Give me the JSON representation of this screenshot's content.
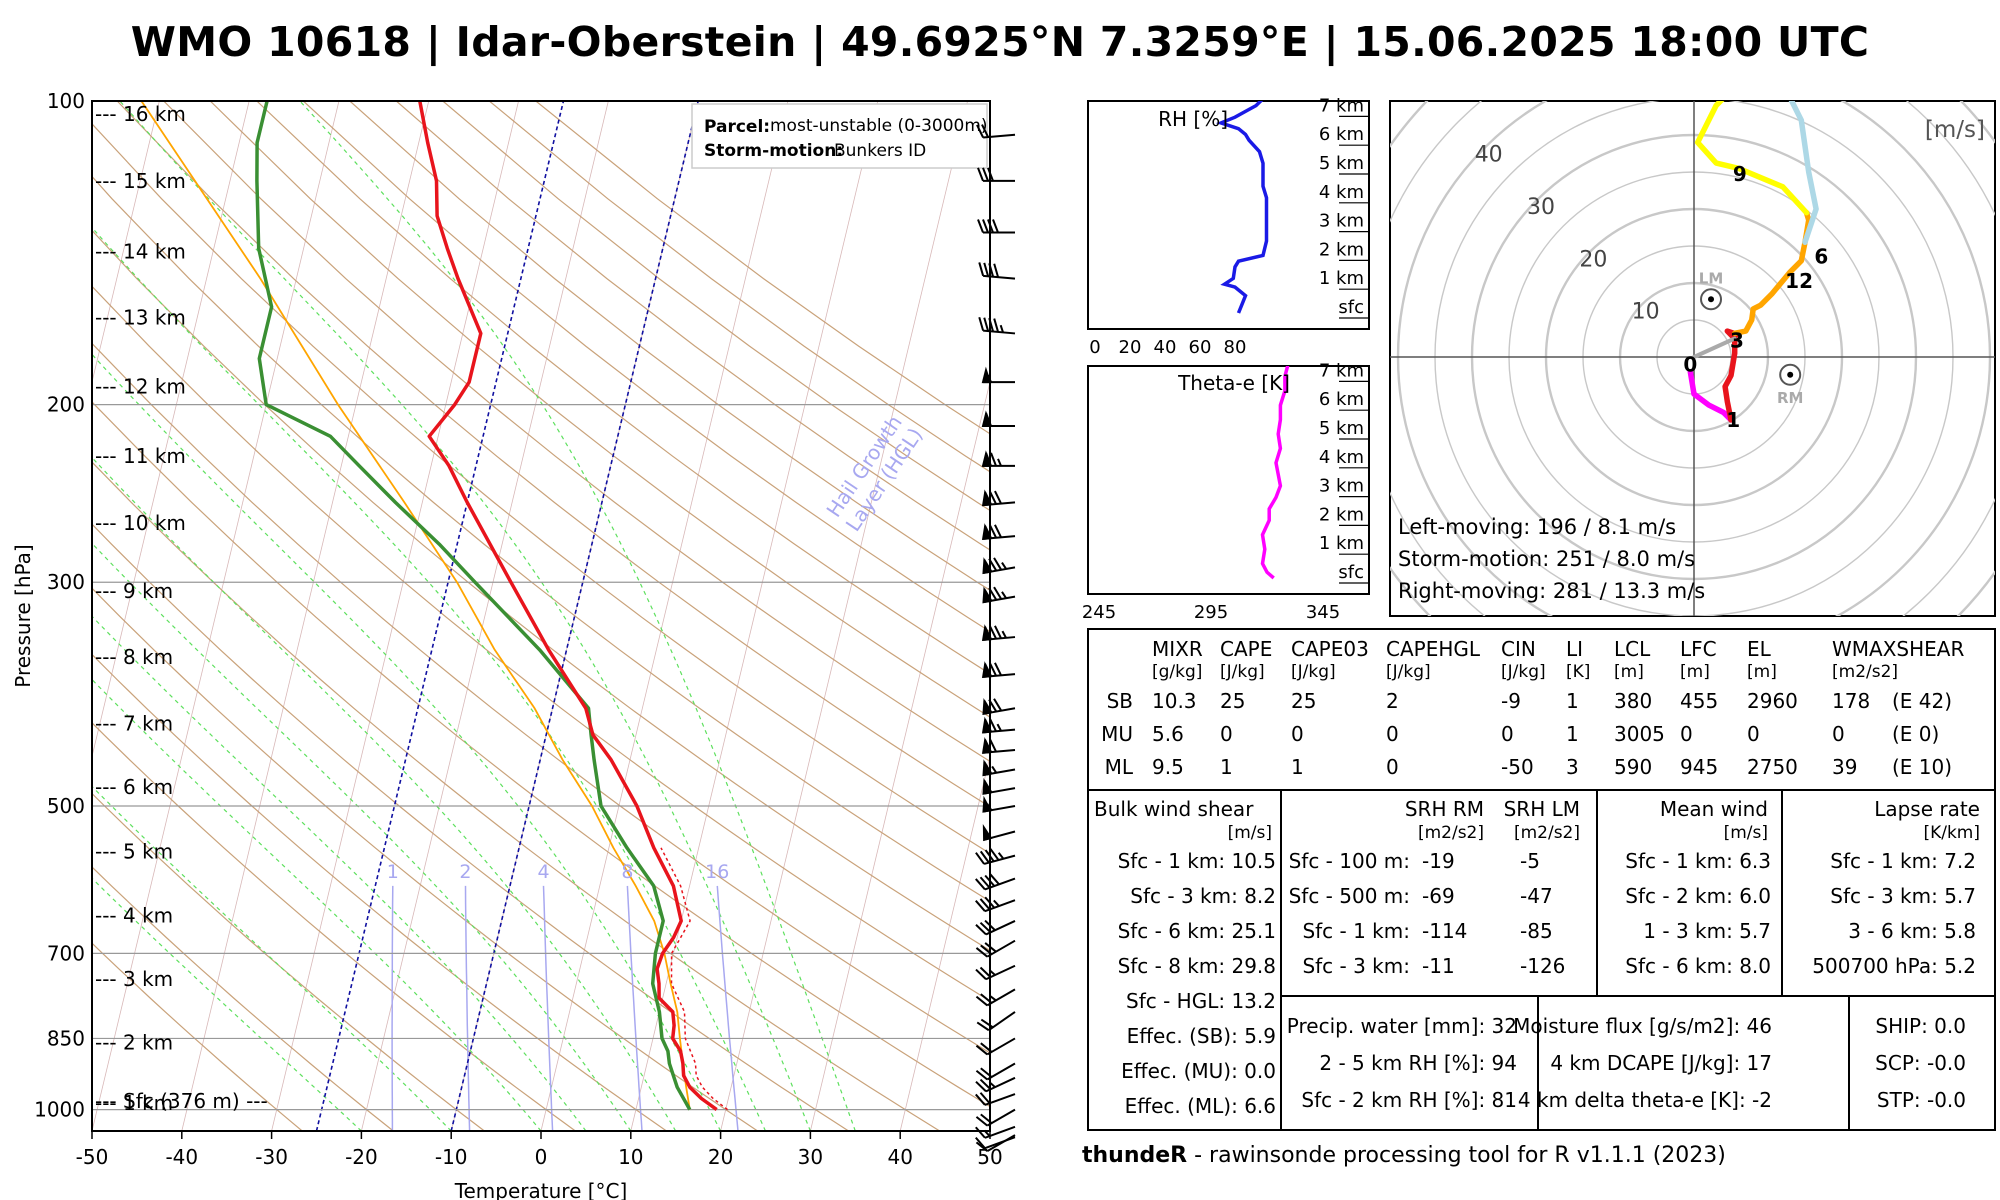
{
  "title": "WMO 10618 | Idar-Oberstein | 49.6925°N 7.3259°E | 15.06.2025 18:00 UTC",
  "footer": {
    "brand": "thundeR",
    "text": " - rawinsonde processing tool for R v1.1.1 (2023)"
  },
  "skewt": {
    "ylabel": "Pressure [hPa]",
    "xlabel": "Temperature [°C]",
    "pressure_ticks": [
      "100",
      "200",
      "300",
      "500",
      "700",
      "850",
      "1000"
    ],
    "temp_ticks": [
      "-50",
      "-40",
      "-30",
      "-20",
      "-10",
      "0",
      "10",
      "20",
      "30",
      "40",
      "50"
    ],
    "height_labels": [
      "--- 16 km",
      "--- 15 km",
      "--- 14 km",
      "--- 13 km",
      "--- 12 km",
      "--- 11 km",
      "--- 10 km",
      "--- 9 km",
      "--- 8 km",
      "--- 7 km",
      "--- 6 km",
      "--- 5 km",
      "--- 4 km",
      "--- 3 km",
      "--- 2 km",
      "--- 1 km",
      "--- Sfc (376 m) ---"
    ],
    "legend": {
      "parcel_key": "Parcel:",
      "parcel_val": "most-unstable (0-3000m)",
      "storm_key": "Storm-motion:",
      "storm_val": "Bunkers ID"
    },
    "mixing_labels": [
      "1",
      "2",
      "4",
      "8",
      "16"
    ],
    "hgl_label_1": "Hail Growth",
    "hgl_label_2": "Layer (HGL)",
    "colors": {
      "temperature": "#e8141c",
      "dewpoint": "#3a8f33",
      "parcel": "#ffa500",
      "hgl": "#1010a0",
      "mixing": "#a8a8f0"
    }
  },
  "chart_data": [
    {
      "type": "line",
      "name": "skew-t",
      "ylim_hpa": [
        1000,
        100
      ],
      "xlim_c": [
        -50,
        50
      ],
      "series": [
        {
          "name": "temperature",
          "points": [
            [
              1000,
              19
            ],
            [
              975,
              17
            ],
            [
              950,
              15.4
            ],
            [
              925,
              14.4
            ],
            [
              900,
              14
            ],
            [
              875,
              13.4
            ],
            [
              850,
              12.2
            ],
            [
              825,
              12
            ],
            [
              800,
              11.5
            ],
            [
              775,
              9.6
            ],
            [
              750,
              9.2
            ],
            [
              725,
              8.6
            ],
            [
              700,
              8.8
            ],
            [
              675,
              9.6
            ],
            [
              650,
              10
            ],
            [
              600,
              8.2
            ],
            [
              550,
              5
            ],
            [
              500,
              2
            ],
            [
              450,
              -2.1
            ],
            [
              425,
              -4.8
            ],
            [
              400,
              -6.3
            ],
            [
              350,
              -12
            ],
            [
              300,
              -18
            ],
            [
              250,
              -25
            ],
            [
              230,
              -28
            ],
            [
              215,
              -31
            ],
            [
              200,
              -29
            ],
            [
              190,
              -28
            ],
            [
              170,
              -28
            ],
            [
              150,
              -32
            ],
            [
              140,
              -34
            ],
            [
              130,
              -36
            ],
            [
              120,
              -37
            ],
            [
              110,
              -39
            ],
            [
              100,
              -41
            ]
          ]
        },
        {
          "name": "dewpoint",
          "points": [
            [
              1000,
              16
            ],
            [
              950,
              14
            ],
            [
              900,
              12.5
            ],
            [
              875,
              12
            ],
            [
              850,
              11
            ],
            [
              800,
              10
            ],
            [
              750,
              8.5
            ],
            [
              700,
              8
            ],
            [
              650,
              8
            ],
            [
              600,
              6
            ],
            [
              550,
              2
            ],
            [
              500,
              -2
            ],
            [
              450,
              -4
            ],
            [
              425,
              -5
            ],
            [
              400,
              -6
            ],
            [
              350,
              -13
            ],
            [
              300,
              -22
            ],
            [
              275,
              -27
            ],
            [
              250,
              -33
            ],
            [
              230,
              -38
            ],
            [
              215,
              -42
            ],
            [
              200,
              -50
            ],
            [
              180,
              -52
            ],
            [
              160,
              -52
            ],
            [
              140,
              -55
            ],
            [
              120,
              -57
            ],
            [
              110,
              -58
            ],
            [
              100,
              -58
            ]
          ]
        },
        {
          "name": "parcel",
          "points": [
            [
              1000,
              16
            ],
            [
              950,
              15
            ],
            [
              900,
              14
            ],
            [
              850,
              13
            ],
            [
              800,
              12
            ],
            [
              750,
              10.5
            ],
            [
              700,
              9
            ],
            [
              650,
              7
            ],
            [
              600,
              4
            ],
            [
              550,
              0.5
            ],
            [
              500,
              -3
            ],
            [
              450,
              -7.5
            ],
            [
              400,
              -12
            ],
            [
              350,
              -18
            ],
            [
              300,
              -24
            ],
            [
              250,
              -32
            ],
            [
              200,
              -42
            ],
            [
              150,
              -54
            ],
            [
              100,
              -72
            ]
          ]
        },
        {
          "name": "virtual-temperature",
          "points": [
            [
              1000,
              20.2
            ],
            [
              975,
              18.3
            ],
            [
              950,
              16.8
            ],
            [
              925,
              15.8
            ],
            [
              900,
              15.4
            ],
            [
              850,
              13.6
            ],
            [
              800,
              12.8
            ],
            [
              750,
              10.6
            ],
            [
              700,
              9.8
            ],
            [
              650,
              11
            ],
            [
              600,
              9
            ],
            [
              550,
              5.8
            ]
          ]
        }
      ]
    },
    {
      "type": "line",
      "name": "relative-humidity",
      "xlabel": "RH [%]",
      "x_ticks": [
        "0",
        "20",
        "40",
        "60",
        "80"
      ],
      "height_labels": [
        "7 km",
        "6 km",
        "5 km",
        "4 km",
        "3 km",
        "2 km",
        "1 km",
        "sfc"
      ],
      "xlim": [
        0,
        100
      ],
      "points_km_rh": [
        [
          0,
          82
        ],
        [
          0.3,
          84
        ],
        [
          0.6,
          86
        ],
        [
          0.9,
          80
        ],
        [
          1.0,
          74
        ],
        [
          1.2,
          79
        ],
        [
          1.6,
          80
        ],
        [
          1.8,
          82
        ],
        [
          2.0,
          96
        ],
        [
          2.5,
          98
        ],
        [
          3.0,
          98
        ],
        [
          3.5,
          98
        ],
        [
          4.0,
          98
        ],
        [
          4.4,
          96
        ],
        [
          4.8,
          96
        ],
        [
          5.2,
          96
        ],
        [
          5.6,
          94
        ],
        [
          6.0,
          88
        ],
        [
          6.2,
          86
        ],
        [
          6.4,
          82
        ],
        [
          6.6,
          72
        ],
        [
          6.8,
          80
        ],
        [
          7.0,
          86
        ],
        [
          7.2,
          92
        ],
        [
          7.5,
          97
        ],
        [
          7.8,
          99
        ]
      ]
    },
    {
      "type": "line",
      "name": "theta-e",
      "xlabel": "Theta-e [K]",
      "x_ticks": [
        "245",
        "295",
        "345"
      ],
      "height_labels": [
        "7 km",
        "6 km",
        "5 km",
        "4 km",
        "3 km",
        "2 km",
        "1 km",
        "sfc"
      ],
      "xlim": [
        245,
        375
      ],
      "points_km_k": [
        [
          0,
          323
        ],
        [
          0.2,
          320
        ],
        [
          0.5,
          318
        ],
        [
          1.0,
          319
        ],
        [
          1.5,
          318
        ],
        [
          2.0,
          321
        ],
        [
          2.4,
          321
        ],
        [
          2.8,
          324
        ],
        [
          3.2,
          326
        ],
        [
          3.6,
          325
        ],
        [
          4.0,
          324
        ],
        [
          4.5,
          326
        ],
        [
          5.0,
          325
        ],
        [
          5.5,
          326
        ],
        [
          6.0,
          326
        ],
        [
          6.5,
          328
        ],
        [
          7.0,
          328
        ],
        [
          7.6,
          330
        ],
        [
          8.0,
          331
        ]
      ]
    },
    {
      "type": "scatter",
      "name": "hodograph",
      "unit_label": "[m/s]",
      "rings": [
        "10",
        "20",
        "30",
        "40"
      ],
      "segments": [
        {
          "name": "0-1 km",
          "color": "#ff00ff",
          "points": [
            [
              -0.5,
              -2
            ],
            [
              0,
              -5
            ],
            [
              2,
              -6.5
            ],
            [
              4,
              -7.5
            ],
            [
              5,
              -8.5
            ]
          ]
        },
        {
          "name": "1-3 km",
          "color": "#e8141c",
          "points": [
            [
              5,
              -8.5
            ],
            [
              4.5,
              -6
            ],
            [
              4.2,
              -4
            ],
            [
              5,
              -2.5
            ],
            [
              5.5,
              0.5
            ],
            [
              5.5,
              2.5
            ],
            [
              4.5,
              3.5
            ],
            [
              6,
              3
            ],
            [
              5.5,
              3.2
            ]
          ]
        },
        {
          "name": "3-6 km",
          "color": "#ffa500",
          "points": [
            [
              5.5,
              3.2
            ],
            [
              7,
              3.5
            ],
            [
              7.8,
              5
            ],
            [
              8,
              6.5
            ],
            [
              9,
              7
            ],
            [
              10.5,
              8.5
            ],
            [
              13,
              11.5
            ],
            [
              14.5,
              13
            ],
            [
              15,
              15.5
            ],
            [
              15.5,
              18.5
            ],
            [
              15.2,
              19.5
            ]
          ]
        },
        {
          "name": "6-9 km",
          "color": "#ffff00",
          "points": [
            [
              15.2,
              19.5
            ],
            [
              12,
              23
            ],
            [
              6,
              25.5
            ],
            [
              3,
              26.2
            ],
            [
              0.5,
              29
            ],
            [
              3,
              34
            ],
            [
              5,
              36
            ],
            [
              4,
              38
            ],
            [
              3,
              40
            ],
            [
              5,
              40.5
            ],
            [
              6,
              41
            ]
          ]
        },
        {
          "name": "9-12 km",
          "color": "#add8e6",
          "points": [
            [
              6,
              41
            ],
            [
              4,
              44
            ],
            [
              5,
              47
            ],
            [
              8,
              43
            ],
            [
              12,
              37
            ],
            [
              14.5,
              32
            ],
            [
              15.5,
              25
            ],
            [
              16.5,
              20
            ],
            [
              15,
              15.5
            ]
          ]
        },
        {
          "name": "mean-wind",
          "color": "#aaaaaa",
          "points": [
            [
              0,
              0
            ],
            [
              5.5,
              2.5
            ]
          ]
        }
      ],
      "point_labels": [
        {
          "text": "0",
          "u": -0.5,
          "v": -1
        },
        {
          "text": "1",
          "u": 5.3,
          "v": -8.5
        },
        {
          "text": "3",
          "u": 5.8,
          "v": 2.2
        },
        {
          "text": "6",
          "u": 17.2,
          "v": 13.6
        },
        {
          "text": "9",
          "u": 6.2,
          "v": 24.7
        },
        {
          "text": "12",
          "u": 14.2,
          "v": 10.3
        }
      ],
      "storm_markers": [
        {
          "text": "LM",
          "u": 2.3,
          "v": 7.8
        },
        {
          "text": "RM",
          "u": 13,
          "v": -2.4
        }
      ],
      "notes": [
        "Left-moving: 196 / 8.1 m/s",
        "Storm-motion: 251 / 8.0 m/s",
        "Right-moving: 281 / 13.3 m/s"
      ]
    }
  ],
  "params_table": {
    "headers": [
      [
        "MIXR",
        "[g/kg]"
      ],
      [
        "CAPE",
        "[J/kg]"
      ],
      [
        "CAPE03",
        "[J/kg]"
      ],
      [
        "CAPEHGL",
        "[J/kg]"
      ],
      [
        "CIN",
        "[J/kg]"
      ],
      [
        "LI",
        "[K]"
      ],
      [
        "LCL",
        "[m]"
      ],
      [
        "LFC",
        "[m]"
      ],
      [
        "EL",
        "[m]"
      ],
      [
        "WMAXSHEAR",
        "[m2/s2]"
      ]
    ],
    "rows": [
      {
        "label": "SB",
        "values": [
          "10.3",
          "25",
          "25",
          "2",
          "-9",
          "1",
          "380",
          "455",
          "2960",
          "178",
          "(E 42)"
        ]
      },
      {
        "label": "MU",
        "values": [
          "5.6",
          "0",
          "0",
          "0",
          "0",
          "1",
          "3005",
          "0",
          "0",
          "0",
          "(E 0)"
        ]
      },
      {
        "label": "ML",
        "values": [
          "9.5",
          "1",
          "1",
          "0",
          "-50",
          "3",
          "590",
          "945",
          "2750",
          "39",
          "(E 10)"
        ]
      }
    ]
  },
  "bulk_shear": {
    "title": "Bulk wind shear",
    "unit": "[m/s]",
    "rows": [
      "Sfc - 1 km: 10.5",
      "Sfc - 3 km: 8.2",
      "Sfc - 6 km: 25.1",
      "Sfc - 8 km: 29.8",
      "Sfc - HGL: 13.2",
      "Effec. (SB): 5.9",
      "Effec. (MU): 0.0",
      "Effec. (ML): 6.6"
    ]
  },
  "srh": {
    "title_rm": "SRH RM",
    "title_lm": "SRH LM",
    "unit": "[m2/s2]",
    "rows": [
      [
        "Sfc - 100 m:",
        "-19",
        "-5"
      ],
      [
        "Sfc - 500 m:",
        "-69",
        "-47"
      ],
      [
        "Sfc - 1 km:",
        "-114",
        "-85"
      ],
      [
        "Sfc - 3 km:",
        "-11",
        "-126"
      ]
    ]
  },
  "mean_wind": {
    "title": "Mean wind",
    "unit": "[m/s]",
    "rows": [
      "Sfc - 1 km: 6.3",
      "Sfc - 2 km: 6.0",
      "1 - 3 km: 5.7",
      "Sfc - 6 km: 8.0"
    ]
  },
  "lapse_rate": {
    "title": "Lapse rate",
    "unit": "[K/km]",
    "rows": [
      "Sfc - 1 km: 7.2",
      "Sfc - 3 km: 5.7",
      "3 - 6 km: 5.8",
      "500700 hPa: 5.2"
    ]
  },
  "moisture": {
    "rows": [
      "Precip. water [mm]: 32",
      "2 - 5 km RH [%]: 94",
      "Sfc - 2 km RH [%]: 81"
    ]
  },
  "flux": {
    "rows": [
      "Moisture flux [g/s/m2]: 46",
      "4 km DCAPE [J/kg]: 17",
      "4 km delta theta-e [K]: -2"
    ]
  },
  "indices": {
    "rows": [
      "SHIP: 0.0",
      "SCP: -0.0",
      "STP: -0.0"
    ]
  }
}
